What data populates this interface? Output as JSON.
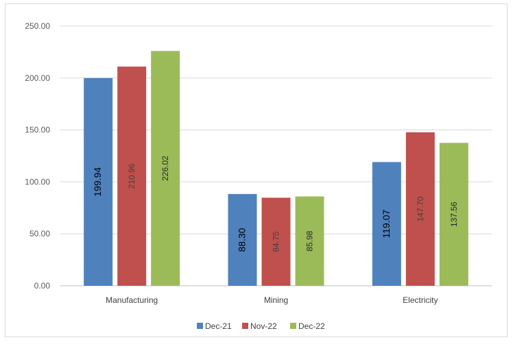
{
  "chart_data": {
    "type": "bar",
    "title": "",
    "xlabel": "",
    "ylabel": "",
    "categories": [
      "Manufacturing",
      "Mining",
      "Electricity"
    ],
    "series": [
      {
        "name": "Dec-21",
        "color": "#4f81bd",
        "label_color": "#000000",
        "values": [
          199.94,
          88.3,
          119.07
        ],
        "labels": [
          "199.94",
          "88.30",
          "119.07"
        ]
      },
      {
        "name": "Nov-22",
        "color": "#c0504d",
        "label_color": "#404040",
        "values": [
          210.96,
          84.75,
          147.7
        ],
        "labels": [
          "210.96",
          "84.75",
          "147.70"
        ]
      },
      {
        "name": "Dec-22",
        "color": "#9bbb59",
        "label_color": "#262626",
        "values": [
          226.02,
          85.98,
          137.56
        ],
        "labels": [
          "226.02",
          "85.98",
          "137.56"
        ]
      }
    ],
    "ylim": [
      0,
      250
    ],
    "yticks": [
      "0.00",
      "50.00",
      "100.00",
      "150.00",
      "200.00",
      "250.00"
    ],
    "grid": true,
    "legend_position": "bottom"
  }
}
